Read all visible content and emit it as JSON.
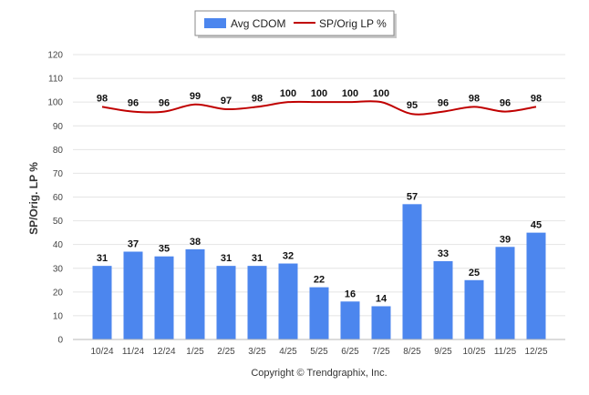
{
  "legend": {
    "bar_label": "Avg CDOM",
    "line_label": "SP/Orig LP %"
  },
  "footer": "Copyright © Trendgraphix, Inc.",
  "colors": {
    "bar": "#4c86ee",
    "line": "#c00000"
  },
  "chart_data": {
    "type": "bar",
    "ylabel": "SP/Orig. LP %",
    "xlabel": "",
    "ylim": [
      0,
      120
    ],
    "yticks": [
      0,
      10,
      20,
      30,
      40,
      50,
      60,
      70,
      80,
      90,
      100,
      110,
      120
    ],
    "grid": true,
    "legend_position": "top-center",
    "categories": [
      "10/24",
      "11/24",
      "12/24",
      "1/25",
      "2/25",
      "3/25",
      "4/25",
      "5/25",
      "6/25",
      "7/25",
      "8/25",
      "9/25",
      "10/25",
      "11/25",
      "12/25"
    ],
    "series": [
      {
        "name": "Avg CDOM",
        "type": "bar",
        "values": [
          31,
          37,
          35,
          38,
          31,
          31,
          32,
          22,
          16,
          14,
          57,
          33,
          25,
          39,
          45
        ]
      },
      {
        "name": "SP/Orig LP %",
        "type": "line",
        "values": [
          98,
          96,
          96,
          99,
          97,
          98,
          100,
          100,
          100,
          100,
          95,
          96,
          98,
          96,
          98
        ]
      }
    ]
  }
}
